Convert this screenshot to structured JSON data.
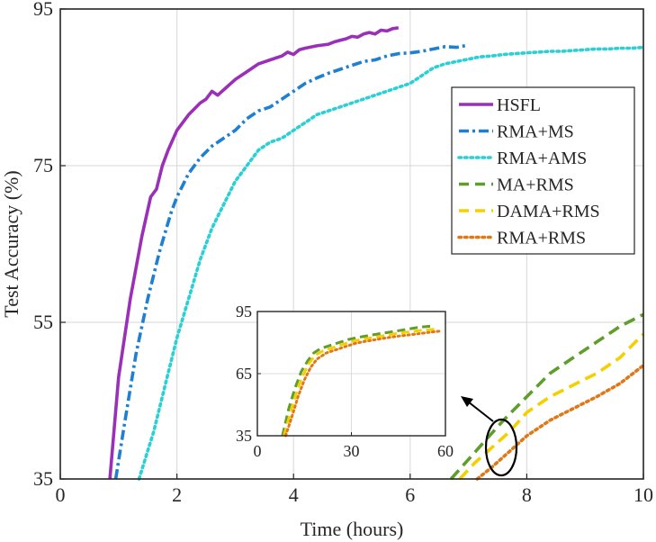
{
  "chart_data": {
    "type": "line",
    "xlabel": "Time (hours)",
    "ylabel": "Test Accuracy (%)",
    "xlim": [
      0,
      10
    ],
    "ylim": [
      35,
      95
    ],
    "xticks": [
      "0",
      "2",
      "4",
      "6",
      "8",
      "10"
    ],
    "yticks": [
      "35",
      "55",
      "75",
      "95"
    ],
    "grid": true,
    "legend_position": "top-right",
    "series": [
      {
        "name": "HSFL",
        "color": "#9b30b8",
        "style": "solid",
        "x": [
          0.85,
          1.0,
          1.2,
          1.4,
          1.55,
          1.65,
          1.75,
          1.85,
          2.0,
          2.2,
          2.4,
          2.5,
          2.6,
          2.7,
          2.85,
          3.0,
          3.2,
          3.4,
          3.6,
          3.8,
          3.9,
          4.0,
          4.1,
          4.2,
          4.4,
          4.6,
          4.7,
          4.8,
          4.9,
          5.0,
          5.1,
          5.2,
          5.3,
          5.4,
          5.5,
          5.6,
          5.7,
          5.8
        ],
        "y": [
          35,
          48,
          58,
          66,
          71,
          72,
          75,
          77,
          79.5,
          81.5,
          83,
          83.5,
          84.5,
          84,
          85,
          86,
          87,
          88,
          88.5,
          89,
          89.5,
          89.2,
          89.8,
          90,
          90.3,
          90.5,
          90.8,
          91,
          91.2,
          91.5,
          91.4,
          91.8,
          92,
          91.8,
          92.3,
          92.2,
          92.5,
          92.6
        ]
      },
      {
        "name": "RMA+MS",
        "color": "#1f7fd1",
        "style": "dashdot",
        "x": [
          0.95,
          1.1,
          1.3,
          1.5,
          1.7,
          1.9,
          2.0,
          2.2,
          2.4,
          2.6,
          2.8,
          3.0,
          3.2,
          3.4,
          3.6,
          3.8,
          4.0,
          4.2,
          4.4,
          4.6,
          4.8,
          5.0,
          5.2,
          5.4,
          5.6,
          5.8,
          6.0,
          6.2,
          6.4,
          6.6,
          6.8,
          7.0
        ],
        "y": [
          35,
          42,
          51,
          58,
          64,
          69,
          71,
          74,
          76,
          77.5,
          78.5,
          79.5,
          81,
          82,
          82.5,
          83.5,
          84.5,
          85.5,
          86.2,
          86.8,
          87.3,
          87.8,
          88.3,
          88.5,
          89,
          89.3,
          89.4,
          89.6,
          89.9,
          90.2,
          90.1,
          90.4
        ]
      },
      {
        "name": "RMA+AMS",
        "color": "#2ad0d4",
        "style": "dotted",
        "x": [
          1.35,
          1.6,
          1.8,
          2.0,
          2.2,
          2.4,
          2.6,
          2.8,
          3.0,
          3.2,
          3.4,
          3.6,
          3.8,
          4.0,
          4.2,
          4.4,
          4.6,
          4.8,
          5.0,
          5.2,
          5.4,
          5.6,
          5.8,
          6.0,
          6.2,
          6.4,
          6.6,
          6.8,
          7.0,
          7.2,
          7.4,
          7.6,
          7.8,
          8.0,
          8.2,
          8.4,
          8.6,
          8.8,
          9.0,
          9.2,
          9.4,
          9.6,
          9.8,
          10.0
        ],
        "y": [
          35,
          41,
          47,
          53,
          58,
          63,
          67,
          70,
          73,
          75,
          77,
          78,
          78.5,
          79.5,
          80.5,
          81.5,
          82,
          82.5,
          83,
          83.5,
          84,
          84.5,
          85,
          85.5,
          86.5,
          87.5,
          88,
          88.3,
          88.6,
          88.9,
          89,
          89.2,
          89.3,
          89.4,
          89.5,
          89.6,
          89.6,
          89.7,
          89.8,
          89.9,
          89.9,
          90,
          90,
          90.1
        ]
      },
      {
        "name": "MA+RMS",
        "color": "#5f9e2a",
        "style": "dashed",
        "x": [
          6.7,
          7.0,
          7.3,
          7.6,
          8.0,
          8.4,
          8.8,
          9.2,
          9.6,
          10.0
        ],
        "y": [
          35,
          37.5,
          40,
          42.5,
          45.5,
          48.5,
          50.5,
          52.5,
          54.5,
          56
        ]
      },
      {
        "name": "DAMA+RMS",
        "color": "#f5d000",
        "style": "dashed",
        "x": [
          6.85,
          7.1,
          7.4,
          7.7,
          8.0,
          8.4,
          8.8,
          9.2,
          9.6,
          10.0
        ],
        "y": [
          35,
          37,
          39,
          41,
          43.5,
          45.5,
          47,
          48.5,
          50.5,
          53.5
        ]
      },
      {
        "name": "RMA+RMS",
        "color": "#e07818",
        "style": "dotted",
        "x": [
          7.15,
          7.4,
          7.7,
          8.0,
          8.4,
          8.8,
          9.2,
          9.6,
          10.0
        ],
        "y": [
          35,
          36.5,
          38.5,
          40.5,
          42.5,
          44,
          45.5,
          47.2,
          49.5
        ]
      }
    ],
    "inset": {
      "xlim": [
        0,
        60
      ],
      "ylim": [
        35,
        95
      ],
      "xticks": [
        "0",
        "30",
        "60"
      ],
      "yticks": [
        "35",
        "65",
        "95"
      ],
      "series": [
        {
          "name": "MA+RMS",
          "x": [
            8,
            10,
            12,
            14,
            16,
            18,
            20,
            23,
            26,
            29,
            32,
            36,
            40,
            44,
            48,
            52,
            56
          ],
          "y": [
            35,
            48,
            58,
            66,
            71,
            75,
            77,
            78.5,
            80,
            81.5,
            82.5,
            83.5,
            84.5,
            85.5,
            86.5,
            87.5,
            88
          ]
        },
        {
          "name": "DAMA+RMS",
          "x": [
            8.5,
            10.5,
            12.5,
            14.5,
            16.5,
            18.5,
            21,
            24,
            27,
            30,
            33,
            37,
            41,
            45,
            49,
            53,
            57
          ],
          "y": [
            35,
            46,
            56,
            64,
            70,
            74,
            76,
            77.5,
            79,
            80.5,
            81.5,
            82.5,
            83.5,
            84.5,
            85.3,
            86,
            86.5
          ]
        },
        {
          "name": "RMA+RMS",
          "x": [
            9,
            11,
            13,
            15,
            17,
            19,
            22,
            25,
            28,
            31,
            34,
            38,
            42,
            46,
            50,
            54,
            58
          ],
          "y": [
            35,
            44,
            54,
            62,
            68,
            72,
            75,
            76.5,
            78,
            79.5,
            80.5,
            81.5,
            82.5,
            83.3,
            84,
            84.8,
            85.5
          ]
        }
      ]
    }
  }
}
